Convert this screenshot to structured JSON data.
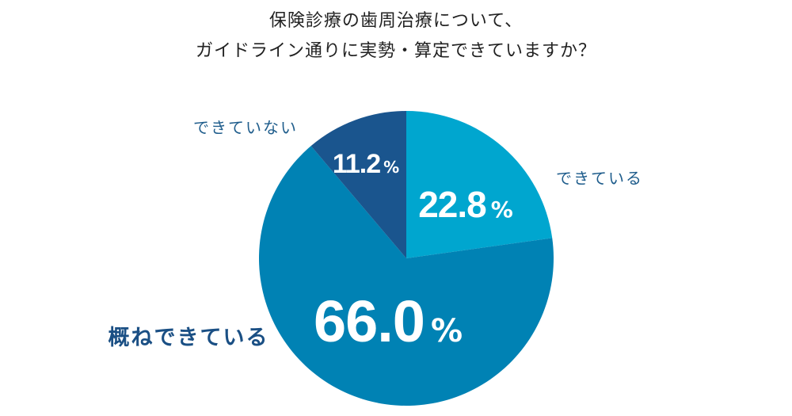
{
  "title_lines": [
    "保険診療の歯周治療について、",
    "ガイドライン通りに実勢・算定できていますか？"
  ],
  "chart_data": {
    "type": "pie",
    "title": "保険診療の歯周治療について、ガイドライン通りに実勢・算定できていますか？",
    "slices": [
      {
        "label": "できている",
        "value": 22.8,
        "display": "22.8",
        "color": "#00a6cf",
        "label_color": "#1f5d8c"
      },
      {
        "label": "概ねできている",
        "value": 66.0,
        "display": "66.0",
        "color": "#0082b4",
        "label_color": "#1a4f84"
      },
      {
        "label": "できていない",
        "value": 11.2,
        "display": "11.2",
        "color": "#1a558e",
        "label_color": "#1f5d8c"
      }
    ],
    "unit": "%",
    "start_angle_deg": 0,
    "direction": "clockwise"
  }
}
